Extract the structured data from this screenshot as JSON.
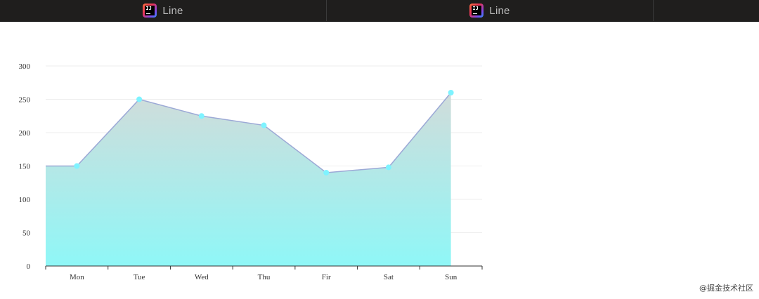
{
  "tabs": [
    {
      "label": "Line",
      "icon": "intellij-idea-icon"
    },
    {
      "label": "Line",
      "icon": "intellij-idea-icon"
    }
  ],
  "watermark": "@掘金技术社区",
  "chart_data": {
    "type": "area",
    "categories": [
      "Mon",
      "Tue",
      "Wed",
      "Thu",
      "Fir",
      "Sat",
      "Sun"
    ],
    "series": [
      {
        "values": [
          150,
          250,
          225,
          211,
          140,
          148,
          260
        ]
      }
    ],
    "title": "",
    "xlabel": "",
    "ylabel": "",
    "ylim": [
      0,
      300
    ],
    "yticks": [
      0,
      50,
      100,
      150,
      200,
      250,
      300
    ],
    "grid": true,
    "colors": {
      "line": "#9ca9d6",
      "point": "#7ef3ff",
      "area_top": "#d1dcda",
      "area_bottom": "#8ff7f7",
      "axis": "#333333",
      "grid": "#eeeeee"
    }
  }
}
